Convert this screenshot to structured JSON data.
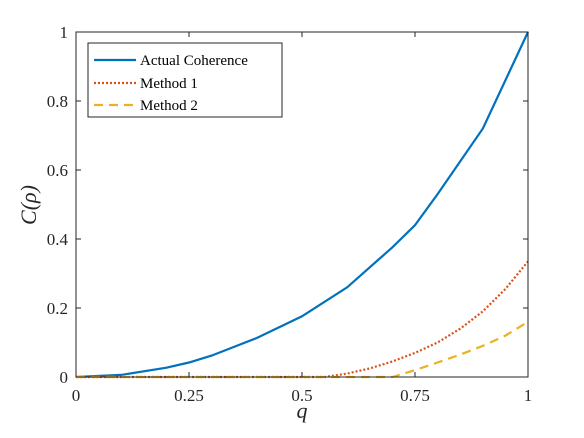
{
  "chart_data": {
    "type": "line",
    "xlabel": "q",
    "ylabel": "C(ρ)",
    "xlim": [
      0,
      1
    ],
    "ylim": [
      0,
      1
    ],
    "xticks": [
      "0",
      "0.25",
      "0.5",
      "0.75",
      "1"
    ],
    "yticks": [
      "0",
      "0.2",
      "0.4",
      "0.6",
      "0.8",
      "1"
    ],
    "grid": false,
    "legend_position": "top-left",
    "series": [
      {
        "name": "Actual Coherence",
        "style": "solid",
        "color": "#0072BD",
        "x": [
          0,
          0.1,
          0.2,
          0.25,
          0.3,
          0.4,
          0.5,
          0.6,
          0.7,
          0.75,
          0.8,
          0.9,
          1.0
        ],
        "y": [
          0,
          0.006,
          0.027,
          0.042,
          0.062,
          0.113,
          0.176,
          0.26,
          0.376,
          0.44,
          0.53,
          0.72,
          1.0
        ]
      },
      {
        "name": "Method 1",
        "style": "dotted",
        "color": "#D95319",
        "x": [
          0,
          0.55,
          0.6,
          0.65,
          0.7,
          0.75,
          0.8,
          0.85,
          0.9,
          0.95,
          1.0
        ],
        "y": [
          0,
          0,
          0.01,
          0.025,
          0.045,
          0.07,
          0.1,
          0.14,
          0.19,
          0.255,
          0.335
        ]
      },
      {
        "name": "Method 2",
        "style": "dashed",
        "color": "#EDB120",
        "x": [
          0,
          0.7,
          0.75,
          0.8,
          0.85,
          0.9,
          0.95,
          1.0
        ],
        "y": [
          0,
          0,
          0.02,
          0.042,
          0.065,
          0.09,
          0.12,
          0.16
        ]
      }
    ]
  }
}
